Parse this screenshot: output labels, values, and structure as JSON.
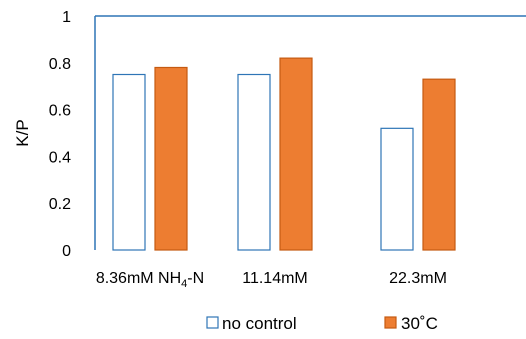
{
  "chart_data": {
    "type": "bar",
    "title": "",
    "xlabel": "",
    "ylabel": "K/P",
    "ylim": [
      0,
      1
    ],
    "yticks": [
      "0",
      "0.2",
      "0.4",
      "0.6",
      "0.8",
      "1"
    ],
    "grid": false,
    "legend_position": "bottom",
    "categories": [
      {
        "label_main": "8.36mM NH",
        "label_sub": "4",
        "label_tail": "-N"
      },
      {
        "label_main": "11.14mM",
        "label_sub": "",
        "label_tail": ""
      },
      {
        "label_main": "22.3mM",
        "label_sub": "",
        "label_tail": ""
      }
    ],
    "series": [
      {
        "name": "no control",
        "values": [
          0.75,
          0.75,
          0.52
        ],
        "fill": "#ffffff",
        "stroke": "#2e75b6"
      },
      {
        "name": "30˚C",
        "values": [
          0.78,
          0.82,
          0.73
        ],
        "fill": "#ed7d31",
        "stroke": "#c55a11"
      }
    ],
    "axis_color": "#2e75b6"
  }
}
